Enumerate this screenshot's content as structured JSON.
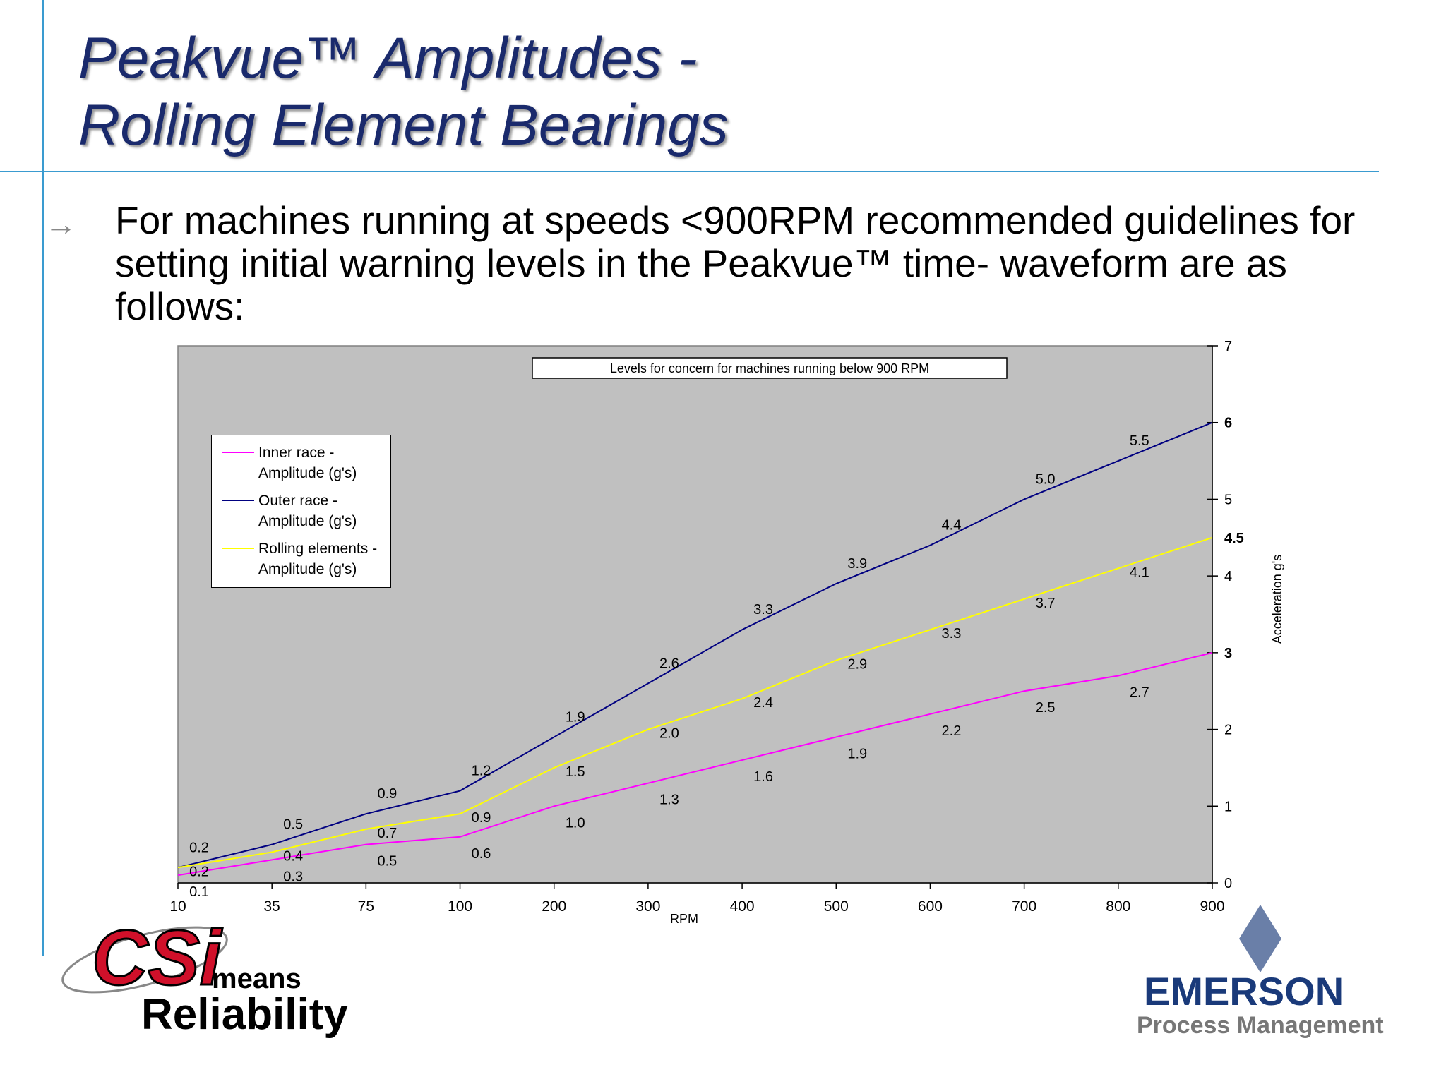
{
  "title_lines": [
    "Peakvue™ Amplitudes -",
    "Rolling Element Bearings"
  ],
  "bullet": "For machines running at speeds <900RPM recommended guidelines for setting initial warning levels in the Peakvue™ time- waveform are as follows:",
  "logo_left": {
    "mark": "CSi",
    "means": "means",
    "word": "Reliability"
  },
  "logo_right": {
    "name": "EMERSON",
    "sub": "Process Management"
  },
  "chart_data": {
    "type": "line",
    "title": "Levels for concern for machines running below  900 RPM",
    "x_label": "RPM",
    "y_label": "Acceleration g's",
    "categories": [
      "10",
      "35",
      "75",
      "100",
      "200",
      "300",
      "400",
      "500",
      "600",
      "700",
      "800",
      "900"
    ],
    "series": [
      {
        "name": "Inner race - Amplitude (g's)",
        "color": "#ff00ff",
        "values": [
          0.1,
          0.3,
          0.5,
          0.6,
          1.0,
          1.3,
          1.6,
          1.9,
          2.2,
          2.5,
          2.7,
          3
        ],
        "value_labels": [
          "0.1",
          "0.3",
          "0.5",
          "0.6",
          "1.0",
          "1.3",
          "1.6",
          "1.9",
          "2.2",
          "2.5",
          "2.7",
          "3"
        ]
      },
      {
        "name": "Outer race - Amplitude (g's)",
        "color": "#000080",
        "values": [
          0.2,
          0.5,
          0.9,
          1.2,
          1.9,
          2.6,
          3.3,
          3.9,
          4.4,
          5.0,
          5.5,
          6
        ],
        "value_labels": [
          "0.2",
          "0.5",
          "0.9",
          "1.2",
          "1.9",
          "2.6",
          "3.3",
          "3.9",
          "4.4",
          "5.0",
          "5.5",
          "6"
        ]
      },
      {
        "name": "Rolling elements - Amplitude (g's)",
        "color": "#ffff00",
        "values": [
          0.2,
          0.4,
          0.7,
          0.9,
          1.5,
          2.0,
          2.4,
          2.9,
          3.3,
          3.7,
          4.1,
          4.5
        ],
        "value_labels": [
          "0.2",
          "0.4",
          "0.7",
          "0.9",
          "1.5",
          "2.0",
          "2.4",
          "2.9",
          "3.3",
          "3.7",
          "4.1",
          "4.5"
        ]
      }
    ],
    "ylim": [
      0,
      7
    ],
    "yticks": [
      0,
      1,
      2,
      3,
      4,
      5,
      6,
      7
    ],
    "legend": "upper left",
    "background": "#c0c0c0"
  }
}
